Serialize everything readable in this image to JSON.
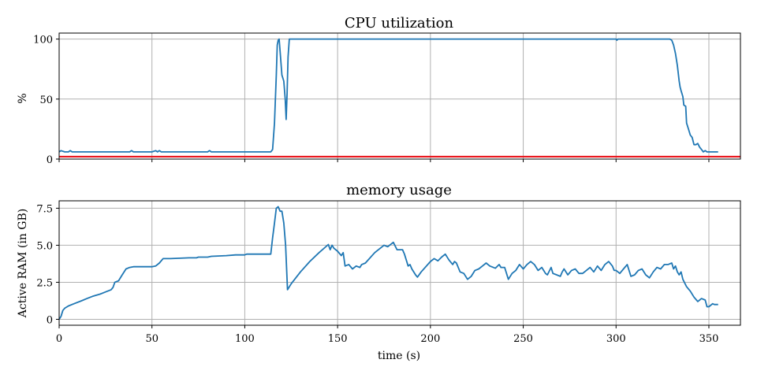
{
  "chart_data": [
    {
      "type": "line",
      "title": "CPU utilization",
      "xlabel": "",
      "ylabel": "%",
      "xlim": [
        0,
        367
      ],
      "ylim": [
        0,
        105
      ],
      "x_ticks": [
        0,
        50,
        100,
        150,
        200,
        250,
        300,
        350
      ],
      "y_ticks": [
        0,
        50,
        100
      ],
      "y_tick_labels": [
        "0",
        "50",
        "100"
      ],
      "grid": true,
      "series": [
        {
          "name": "CPU utilization",
          "color": "#1f77b4",
          "points": [
            [
              0,
              6
            ],
            [
              1,
              7
            ],
            [
              3,
              6
            ],
            [
              5,
              6
            ],
            [
              6,
              7
            ],
            [
              7,
              6
            ],
            [
              10,
              6
            ],
            [
              20,
              6
            ],
            [
              30,
              6
            ],
            [
              38,
              6
            ],
            [
              39,
              7
            ],
            [
              40,
              6
            ],
            [
              50,
              6
            ],
            [
              52,
              7
            ],
            [
              53,
              6
            ],
            [
              54,
              7
            ],
            [
              55,
              6
            ],
            [
              60,
              6
            ],
            [
              70,
              6
            ],
            [
              80,
              6
            ],
            [
              81,
              7
            ],
            [
              82,
              6
            ],
            [
              90,
              6
            ],
            [
              100,
              6
            ],
            [
              110,
              6
            ],
            [
              114,
              6
            ],
            [
              115,
              8
            ],
            [
              116,
              30
            ],
            [
              117,
              70
            ],
            [
              117.5,
              95
            ],
            [
              118,
              99
            ],
            [
              118.5,
              100
            ],
            [
              119,
              90
            ],
            [
              120,
              70
            ],
            [
              121,
              65
            ],
            [
              121.8,
              50
            ],
            [
              122.3,
              33
            ],
            [
              122.8,
              55
            ],
            [
              123.3,
              85
            ],
            [
              124,
              100
            ],
            [
              150,
              100
            ],
            [
              200,
              100
            ],
            [
              250,
              100
            ],
            [
              290,
              100
            ],
            [
              300,
              100
            ],
            [
              300.5,
              99
            ],
            [
              301,
              100
            ],
            [
              310,
              100
            ],
            [
              320,
              100
            ],
            [
              329,
              100
            ],
            [
              330,
              99
            ],
            [
              331,
              95
            ],
            [
              332,
              88
            ],
            [
              333,
              78
            ],
            [
              334,
              65
            ],
            [
              334.5,
              60
            ],
            [
              335,
              57
            ],
            [
              336,
              52
            ],
            [
              336.5,
              45
            ],
            [
              337.5,
              44
            ],
            [
              338,
              30
            ],
            [
              339,
              25
            ],
            [
              340,
              20
            ],
            [
              341,
              18
            ],
            [
              342,
              12
            ],
            [
              343,
              12
            ],
            [
              344,
              13
            ],
            [
              345,
              10
            ],
            [
              346,
              8
            ],
            [
              347,
              6
            ],
            [
              348,
              7
            ],
            [
              349,
              6
            ],
            [
              350,
              6
            ],
            [
              353,
              6
            ],
            [
              355,
              6
            ]
          ]
        },
        {
          "name": "threshold",
          "color": "#e8141b",
          "constant_y": 2
        }
      ]
    },
    {
      "type": "line",
      "title": "memory usage",
      "xlabel": "time (s)",
      "ylabel": "Active RAM (in GB)",
      "xlim": [
        0,
        367
      ],
      "ylim": [
        -0.4,
        8
      ],
      "x_ticks": [
        0,
        50,
        100,
        150,
        200,
        250,
        300,
        350
      ],
      "x_tick_labels": [
        "0",
        "50",
        "100",
        "150",
        "200",
        "250",
        "300",
        "350"
      ],
      "y_ticks": [
        0,
        2.5,
        5.0,
        7.5
      ],
      "y_tick_labels": [
        "0",
        "2.5",
        "5.0",
        "7.5"
      ],
      "grid": true,
      "series": [
        {
          "name": "Active RAM",
          "color": "#1f77b4",
          "points": [
            [
              0,
              0
            ],
            [
              1,
              0.2
            ],
            [
              2,
              0.6
            ],
            [
              3,
              0.75
            ],
            [
              5,
              0.9
            ],
            [
              8,
              1.05
            ],
            [
              12,
              1.25
            ],
            [
              15,
              1.4
            ],
            [
              18,
              1.55
            ],
            [
              22,
              1.7
            ],
            [
              25,
              1.85
            ],
            [
              28,
              2.0
            ],
            [
              29,
              2.15
            ],
            [
              30,
              2.5
            ],
            [
              32,
              2.6
            ],
            [
              34,
              3.0
            ],
            [
              36,
              3.4
            ],
            [
              38,
              3.5
            ],
            [
              40,
              3.55
            ],
            [
              50,
              3.55
            ],
            [
              52,
              3.6
            ],
            [
              54,
              3.8
            ],
            [
              56,
              4.1
            ],
            [
              60,
              4.1
            ],
            [
              70,
              4.15
            ],
            [
              74,
              4.15
            ],
            [
              75,
              4.2
            ],
            [
              80,
              4.2
            ],
            [
              82,
              4.25
            ],
            [
              90,
              4.3
            ],
            [
              95,
              4.35
            ],
            [
              97,
              4.35
            ],
            [
              100,
              4.35
            ],
            [
              101,
              4.4
            ],
            [
              105,
              4.4
            ],
            [
              110,
              4.4
            ],
            [
              114,
              4.4
            ],
            [
              115,
              5.5
            ],
            [
              116,
              6.5
            ],
            [
              117,
              7.5
            ],
            [
              118,
              7.6
            ],
            [
              119,
              7.3
            ],
            [
              120,
              7.3
            ],
            [
              121,
              6.5
            ],
            [
              122,
              5.0
            ],
            [
              123,
              2.0
            ],
            [
              125,
              2.4
            ],
            [
              130,
              3.2
            ],
            [
              135,
              3.9
            ],
            [
              140,
              4.5
            ],
            [
              145,
              5.05
            ],
            [
              146,
              4.7
            ],
            [
              147,
              5.0
            ],
            [
              148,
              4.8
            ],
            [
              150,
              4.6
            ],
            [
              152,
              4.3
            ],
            [
              153,
              4.5
            ],
            [
              154,
              3.6
            ],
            [
              156,
              3.7
            ],
            [
              158,
              3.4
            ],
            [
              160,
              3.6
            ],
            [
              162,
              3.5
            ],
            [
              163,
              3.7
            ],
            [
              165,
              3.8
            ],
            [
              170,
              4.5
            ],
            [
              175,
              5.0
            ],
            [
              177,
              4.9
            ],
            [
              180,
              5.2
            ],
            [
              182,
              4.7
            ],
            [
              185,
              4.7
            ],
            [
              186,
              4.4
            ],
            [
              188,
              3.6
            ],
            [
              189,
              3.7
            ],
            [
              190,
              3.4
            ],
            [
              192,
              3.0
            ],
            [
              193,
              2.85
            ],
            [
              195,
              3.2
            ],
            [
              200,
              3.9
            ],
            [
              202,
              4.1
            ],
            [
              204,
              3.95
            ],
            [
              206,
              4.2
            ],
            [
              208,
              4.4
            ],
            [
              210,
              4.0
            ],
            [
              212,
              3.7
            ],
            [
              213,
              3.9
            ],
            [
              214,
              3.8
            ],
            [
              216,
              3.2
            ],
            [
              218,
              3.1
            ],
            [
              220,
              2.7
            ],
            [
              222,
              2.9
            ],
            [
              224,
              3.3
            ],
            [
              226,
              3.4
            ],
            [
              228,
              3.6
            ],
            [
              230,
              3.8
            ],
            [
              232,
              3.6
            ],
            [
              235,
              3.45
            ],
            [
              237,
              3.7
            ],
            [
              238,
              3.5
            ],
            [
              240,
              3.5
            ],
            [
              242,
              2.7
            ],
            [
              244,
              3.1
            ],
            [
              246,
              3.3
            ],
            [
              248,
              3.7
            ],
            [
              250,
              3.4
            ],
            [
              252,
              3.7
            ],
            [
              254,
              3.9
            ],
            [
              256,
              3.7
            ],
            [
              258,
              3.3
            ],
            [
              260,
              3.5
            ],
            [
              262,
              3.1
            ],
            [
              263,
              3.0
            ],
            [
              265,
              3.5
            ],
            [
              266,
              3.1
            ],
            [
              268,
              3.0
            ],
            [
              270,
              2.9
            ],
            [
              271,
              3.2
            ],
            [
              272,
              3.4
            ],
            [
              274,
              3.0
            ],
            [
              276,
              3.3
            ],
            [
              278,
              3.4
            ],
            [
              280,
              3.1
            ],
            [
              282,
              3.1
            ],
            [
              284,
              3.3
            ],
            [
              286,
              3.5
            ],
            [
              288,
              3.2
            ],
            [
              290,
              3.6
            ],
            [
              292,
              3.3
            ],
            [
              294,
              3.7
            ],
            [
              296,
              3.9
            ],
            [
              298,
              3.6
            ],
            [
              299,
              3.3
            ],
            [
              300,
              3.3
            ],
            [
              302,
              3.1
            ],
            [
              304,
              3.4
            ],
            [
              306,
              3.7
            ],
            [
              308,
              2.9
            ],
            [
              310,
              3.0
            ],
            [
              312,
              3.3
            ],
            [
              314,
              3.4
            ],
            [
              316,
              3.0
            ],
            [
              318,
              2.8
            ],
            [
              320,
              3.2
            ],
            [
              322,
              3.5
            ],
            [
              324,
              3.4
            ],
            [
              326,
              3.7
            ],
            [
              328,
              3.7
            ],
            [
              330,
              3.8
            ],
            [
              331,
              3.4
            ],
            [
              332,
              3.6
            ],
            [
              333,
              3.2
            ],
            [
              334,
              3.0
            ],
            [
              335,
              3.2
            ],
            [
              336,
              2.7
            ],
            [
              338,
              2.2
            ],
            [
              340,
              1.9
            ],
            [
              342,
              1.5
            ],
            [
              344,
              1.2
            ],
            [
              346,
              1.4
            ],
            [
              348,
              1.3
            ],
            [
              349,
              0.85
            ],
            [
              350,
              0.85
            ],
            [
              352,
              1.05
            ],
            [
              353,
              1.0
            ],
            [
              355,
              1.0
            ]
          ]
        }
      ]
    }
  ]
}
